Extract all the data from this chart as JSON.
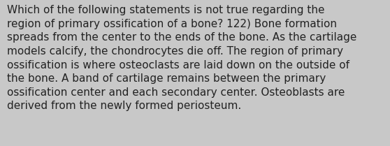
{
  "background_color": "#c8c8c8",
  "text_color": "#222222",
  "font_size": 11.0,
  "font_family": "DejaVu Sans",
  "lines": [
    "Which of the following statements is not true regarding the",
    "region of primary ossification of a bone? 122) Bone formation",
    "spreads from the center to the ends of the bone. As the cartilage",
    "models calcify, the chondrocytes die off. The region of primary",
    "ossification is where osteoclasts are laid down on the outside of",
    "the bone. A band of cartilage remains between the primary",
    "ossification center and each secondary center. Osteoblasts are",
    "derived from the newly formed periosteum."
  ],
  "figsize": [
    5.58,
    2.09
  ],
  "dpi": 100
}
